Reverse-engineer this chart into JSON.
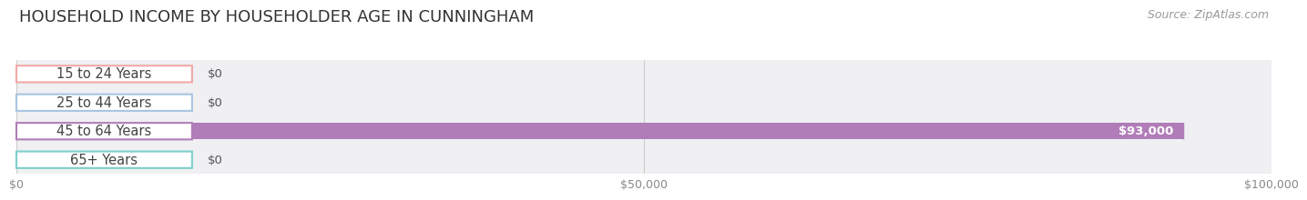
{
  "title": "HOUSEHOLD INCOME BY HOUSEHOLDER AGE IN CUNNINGHAM",
  "source": "Source: ZipAtlas.com",
  "categories": [
    "15 to 24 Years",
    "25 to 44 Years",
    "45 to 64 Years",
    "65+ Years"
  ],
  "values": [
    0,
    0,
    93000,
    0
  ],
  "bar_colors": [
    "#f0a8a6",
    "#a9c5e2",
    "#b07db8",
    "#7dd0cc"
  ],
  "value_labels": [
    "$0",
    "$0",
    "$93,000",
    "$0"
  ],
  "xlim": [
    0,
    100000
  ],
  "xticks": [
    0,
    50000,
    100000
  ],
  "xtick_labels": [
    "$0",
    "$50,000",
    "$100,000"
  ],
  "bar_height": 0.58,
  "title_fontsize": 13,
  "source_fontsize": 9,
  "label_fontsize": 10.5,
  "value_fontsize": 9.5
}
